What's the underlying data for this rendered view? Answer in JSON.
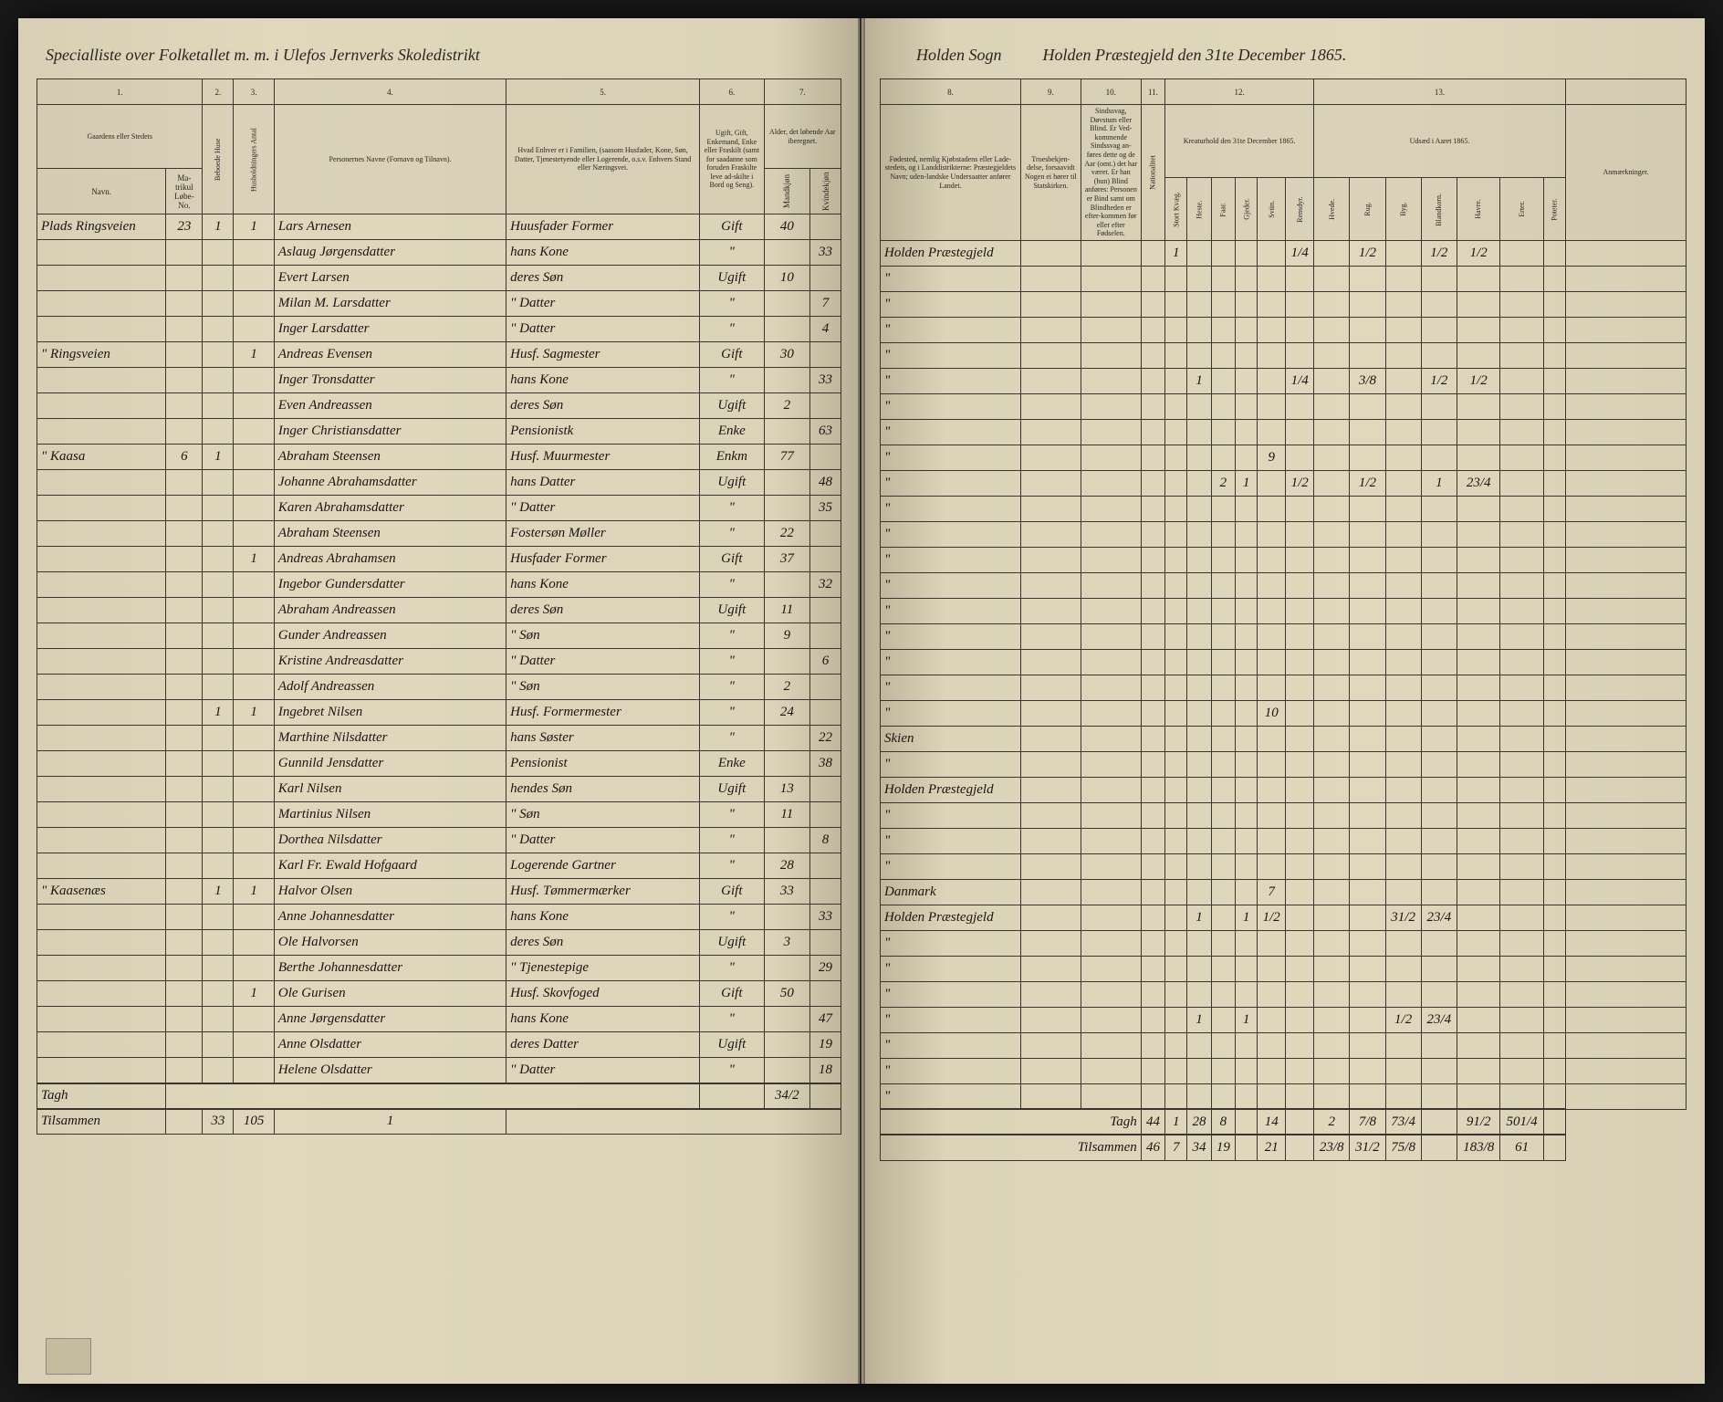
{
  "header": {
    "left": "Specialliste over Folketallet m. m. i Ulefos Jernverks Skoledistrikt",
    "right_parish": "Holden Sogn",
    "right_district": "Holden Præstegjeld den 31te December 1865."
  },
  "columns_left": {
    "c1": "1.",
    "c2": "2.",
    "c3": "3.",
    "c4": "4.",
    "c5": "5.",
    "c6": "6.",
    "c7": "7.",
    "h1": "Gaardens eller Stedets",
    "h1b": "Navn.",
    "h1c": "Ma-trikul Løbe-No.",
    "h2": "Beboede Huse",
    "h3": "Husholdningers Antal",
    "h4": "Personernes Navne (Fornavn og Tilnavn).",
    "h5": "Hvad Enhver er i Familien, (saasom Husfader, Kone, Søn, Datter, Tjenestetyende eller Logerende, o.s.v. Enhvers Stand eller Næringsvei.",
    "h6": "Ugift, Gift, Enkemand, Enke eller Fraskilt (samt for saadanne som foruden Fraskilte leve ad-skilte i Bord og Seng).",
    "h7a": "Alder, det løbende Aar iberegnet.",
    "h7b": "Mandkjøn",
    "h7c": "Kvindekjøn"
  },
  "columns_right": {
    "c8": "8.",
    "c9": "9.",
    "c10": "10.",
    "c11": "11.",
    "c12": "12.",
    "c13": "13.",
    "h8": "Fødested, nemlig Kjøbstadens eller Lade-stedets, og i Landdistrikterne: Præstegjeldets Navn; uden-landske Undersaatter anfører Landet.",
    "h9": "Troesbekjen-delse, forsaavidt Nogen ei hører til Statskirken.",
    "h10": "Sindssvag, Døvstum eller Blind. Er Ved-kommende Sindssvag an-føres dette og de Aar (omt.) det har været. Er han (hun) Blind anføres: Personen er Bind samt om Blindheden er efter-kommen før eller efter Fødselen.",
    "h11": "Nationalitet",
    "h12": "Kreaturhold den 31te December 1865.",
    "h13": "Udsæd i Aaret 1865.",
    "h14": "Anmærkninger.",
    "sub12": [
      "Stort Kvæg.",
      "Heste.",
      "Faar.",
      "Gjeder.",
      "Sviin.",
      "Rensdyr."
    ],
    "sub13": [
      "Hvede.",
      "Rug.",
      "Byg.",
      "Blandkorn.",
      "Havre.",
      "Erter.",
      "Poteter."
    ]
  },
  "rows": [
    {
      "place": "Plads Ringsveien",
      "no": "23",
      "h": "1",
      "f": "1",
      "name": "Lars Arnesen",
      "role": "Huusfader Former",
      "status": "Gift",
      "m": "40",
      "k": "",
      "birth": "Holden Præstegjeld",
      "livestock": [
        "1",
        "",
        "",
        "",
        "",
        "1/4",
        "",
        "1/2",
        "",
        "1/2",
        "1/2"
      ]
    },
    {
      "place": "",
      "no": "",
      "h": "",
      "f": "",
      "name": "Aslaug Jørgensdatter",
      "role": "hans Kone",
      "status": "\"",
      "m": "",
      "k": "33",
      "birth": "\"",
      "livestock": []
    },
    {
      "place": "",
      "no": "",
      "h": "",
      "f": "",
      "name": "Evert Larsen",
      "role": "deres Søn",
      "status": "Ugift",
      "m": "10",
      "k": "",
      "birth": "\"",
      "livestock": []
    },
    {
      "place": "",
      "no": "",
      "h": "",
      "f": "",
      "name": "Milan M. Larsdatter",
      "role": "\" Datter",
      "status": "\"",
      "m": "",
      "k": "7",
      "birth": "\"",
      "livestock": []
    },
    {
      "place": "",
      "no": "",
      "h": "",
      "f": "",
      "name": "Inger Larsdatter",
      "role": "\" Datter",
      "status": "\"",
      "m": "",
      "k": "4",
      "birth": "\"",
      "livestock": []
    },
    {
      "place": "\" Ringsveien",
      "no": "",
      "h": "",
      "f": "1",
      "name": "Andreas Evensen",
      "role": "Husf. Sagmester",
      "status": "Gift",
      "m": "30",
      "k": "",
      "birth": "\"",
      "livestock": [
        "",
        "1",
        "",
        "",
        "",
        "1/4",
        "",
        "3/8",
        "",
        "1/2",
        "1/2"
      ]
    },
    {
      "place": "",
      "no": "",
      "h": "",
      "f": "",
      "name": "Inger Tronsdatter",
      "role": "hans Kone",
      "status": "\"",
      "m": "",
      "k": "33",
      "birth": "\"",
      "livestock": []
    },
    {
      "place": "",
      "no": "",
      "h": "",
      "f": "",
      "name": "Even Andreassen",
      "role": "deres Søn",
      "status": "Ugift",
      "m": "2",
      "k": "",
      "birth": "\"",
      "livestock": []
    },
    {
      "place": "",
      "no": "",
      "h": "",
      "f": "",
      "name": "Inger Christiansdatter",
      "role": "Pensionistk",
      "status": "Enke",
      "m": "",
      "k": "63",
      "birth": "\"",
      "livestock": [
        "",
        "",
        "",
        "",
        "9"
      ]
    },
    {
      "place": "\" Kaasa",
      "no": "6",
      "h": "1",
      "f": "",
      "name": "Abraham Steensen",
      "role": "Husf. Muurmester",
      "status": "Enkm",
      "m": "77",
      "k": "",
      "birth": "\"",
      "livestock": [
        "",
        "",
        "2",
        "1",
        "",
        "1/2",
        "",
        "1/2",
        "",
        "1",
        "23/4"
      ]
    },
    {
      "place": "",
      "no": "",
      "h": "",
      "f": "",
      "name": "Johanne Abrahamsdatter",
      "role": "hans Datter",
      "status": "Ugift",
      "m": "",
      "k": "48",
      "birth": "\"",
      "livestock": []
    },
    {
      "place": "",
      "no": "",
      "h": "",
      "f": "",
      "name": "Karen Abrahamsdatter",
      "role": "\" Datter",
      "status": "\"",
      "m": "",
      "k": "35",
      "birth": "\"",
      "livestock": []
    },
    {
      "place": "",
      "no": "",
      "h": "",
      "f": "",
      "name": "Abraham Steensen",
      "role": "Fostersøn Møller",
      "status": "\"",
      "m": "22",
      "k": "",
      "birth": "\"",
      "livestock": []
    },
    {
      "place": "",
      "no": "",
      "h": "",
      "f": "1",
      "name": "Andreas Abrahamsen",
      "role": "Husfader Former",
      "status": "Gift",
      "m": "37",
      "k": "",
      "birth": "\"",
      "livestock": []
    },
    {
      "place": "",
      "no": "",
      "h": "",
      "f": "",
      "name": "Ingebor Gundersdatter",
      "role": "hans Kone",
      "status": "\"",
      "m": "",
      "k": "32",
      "birth": "\"",
      "livestock": []
    },
    {
      "place": "",
      "no": "",
      "h": "",
      "f": "",
      "name": "Abraham Andreassen",
      "role": "deres Søn",
      "status": "Ugift",
      "m": "11",
      "k": "",
      "birth": "\"",
      "livestock": []
    },
    {
      "place": "",
      "no": "",
      "h": "",
      "f": "",
      "name": "Gunder Andreassen",
      "role": "\" Søn",
      "status": "\"",
      "m": "9",
      "k": "",
      "birth": "\"",
      "livestock": []
    },
    {
      "place": "",
      "no": "",
      "h": "",
      "f": "",
      "name": "Kristine Andreasdatter",
      "role": "\" Datter",
      "status": "\"",
      "m": "",
      "k": "6",
      "birth": "\"",
      "livestock": []
    },
    {
      "place": "",
      "no": "",
      "h": "",
      "f": "",
      "name": "Adolf Andreassen",
      "role": "\" Søn",
      "status": "\"",
      "m": "2",
      "k": "",
      "birth": "\"",
      "livestock": [
        "",
        "",
        "",
        "",
        "10"
      ]
    },
    {
      "place": "",
      "no": "",
      "h": "1",
      "f": "1",
      "name": "Ingebret Nilsen",
      "role": "Husf. Formermester",
      "status": "\"",
      "m": "24",
      "k": "",
      "birth": "Skien",
      "livestock": []
    },
    {
      "place": "",
      "no": "",
      "h": "",
      "f": "",
      "name": "Marthine Nilsdatter",
      "role": "hans Søster",
      "status": "\"",
      "m": "",
      "k": "22",
      "birth": "\"",
      "livestock": []
    },
    {
      "place": "",
      "no": "",
      "h": "",
      "f": "",
      "name": "Gunnild Jensdatter",
      "role": "Pensionist",
      "status": "Enke",
      "m": "",
      "k": "38",
      "birth": "Holden Præstegjeld",
      "livestock": []
    },
    {
      "place": "",
      "no": "",
      "h": "",
      "f": "",
      "name": "Karl Nilsen",
      "role": "hendes Søn",
      "status": "Ugift",
      "m": "13",
      "k": "",
      "birth": "\"",
      "livestock": []
    },
    {
      "place": "",
      "no": "",
      "h": "",
      "f": "",
      "name": "Martinius Nilsen",
      "role": "\" Søn",
      "status": "\"",
      "m": "11",
      "k": "",
      "birth": "\"",
      "livestock": []
    },
    {
      "place": "",
      "no": "",
      "h": "",
      "f": "",
      "name": "Dorthea Nilsdatter",
      "role": "\" Datter",
      "status": "\"",
      "m": "",
      "k": "8",
      "birth": "\"",
      "livestock": []
    },
    {
      "place": "",
      "no": "",
      "h": "",
      "f": "",
      "name": "Karl Fr. Ewald Hofgaard",
      "role": "Logerende Gartner",
      "status": "\"",
      "m": "28",
      "k": "",
      "birth": "Danmark",
      "livestock": [
        "",
        "",
        "",
        "",
        "7"
      ]
    },
    {
      "place": "\" Kaasenæs",
      "no": "",
      "h": "1",
      "f": "1",
      "name": "Halvor Olsen",
      "role": "Husf. Tømmermærker",
      "status": "Gift",
      "m": "33",
      "k": "",
      "birth": "Holden Præstegjeld",
      "livestock": [
        "",
        "1",
        "",
        "1",
        "1/2",
        "",
        "",
        "",
        "31/2",
        "23/4"
      ]
    },
    {
      "place": "",
      "no": "",
      "h": "",
      "f": "",
      "name": "Anne Johannesdatter",
      "role": "hans Kone",
      "status": "\"",
      "m": "",
      "k": "33",
      "birth": "\"",
      "livestock": []
    },
    {
      "place": "",
      "no": "",
      "h": "",
      "f": "",
      "name": "Ole Halvorsen",
      "role": "deres Søn",
      "status": "Ugift",
      "m": "3",
      "k": "",
      "birth": "\"",
      "livestock": []
    },
    {
      "place": "",
      "no": "",
      "h": "",
      "f": "",
      "name": "Berthe Johannesdatter",
      "role": "\" Tjenestepige",
      "status": "\"",
      "m": "",
      "k": "29",
      "birth": "\"",
      "livestock": []
    },
    {
      "place": "",
      "no": "",
      "h": "",
      "f": "1",
      "name": "Ole Gurisen",
      "role": "Husf. Skovfoged",
      "status": "Gift",
      "m": "50",
      "k": "",
      "birth": "\"",
      "livestock": [
        "",
        "1",
        "",
        "1",
        "",
        "",
        "",
        "",
        "1/2",
        "23/4"
      ]
    },
    {
      "place": "",
      "no": "",
      "h": "",
      "f": "",
      "name": "Anne Jørgensdatter",
      "role": "hans Kone",
      "status": "\"",
      "m": "",
      "k": "47",
      "birth": "\"",
      "livestock": []
    },
    {
      "place": "",
      "no": "",
      "h": "",
      "f": "",
      "name": "Anne Olsdatter",
      "role": "deres Datter",
      "status": "Ugift",
      "m": "",
      "k": "19",
      "birth": "\"",
      "livestock": []
    },
    {
      "place": "",
      "no": "",
      "h": "",
      "f": "",
      "name": "Helene Olsdatter",
      "role": "\" Datter",
      "status": "\"",
      "m": "",
      "k": "18",
      "birth": "\"",
      "livestock": []
    }
  ],
  "totals": {
    "label_subtotal": "Tagh",
    "label_sum": "Tilsammen",
    "left_sub": [
      "",
      "34/2",
      ""
    ],
    "left_total": [
      "33",
      "105",
      "1"
    ],
    "right_sub": [
      "44",
      "1",
      "28",
      "8",
      "",
      "14",
      "",
      "2",
      "7/8",
      "73/4",
      "",
      "91/2",
      "501/4"
    ],
    "right_total": [
      "46",
      "7",
      "34",
      "19",
      "",
      "21",
      "",
      "23/8",
      "31/2",
      "75/8",
      "",
      "183/8",
      "61"
    ]
  }
}
